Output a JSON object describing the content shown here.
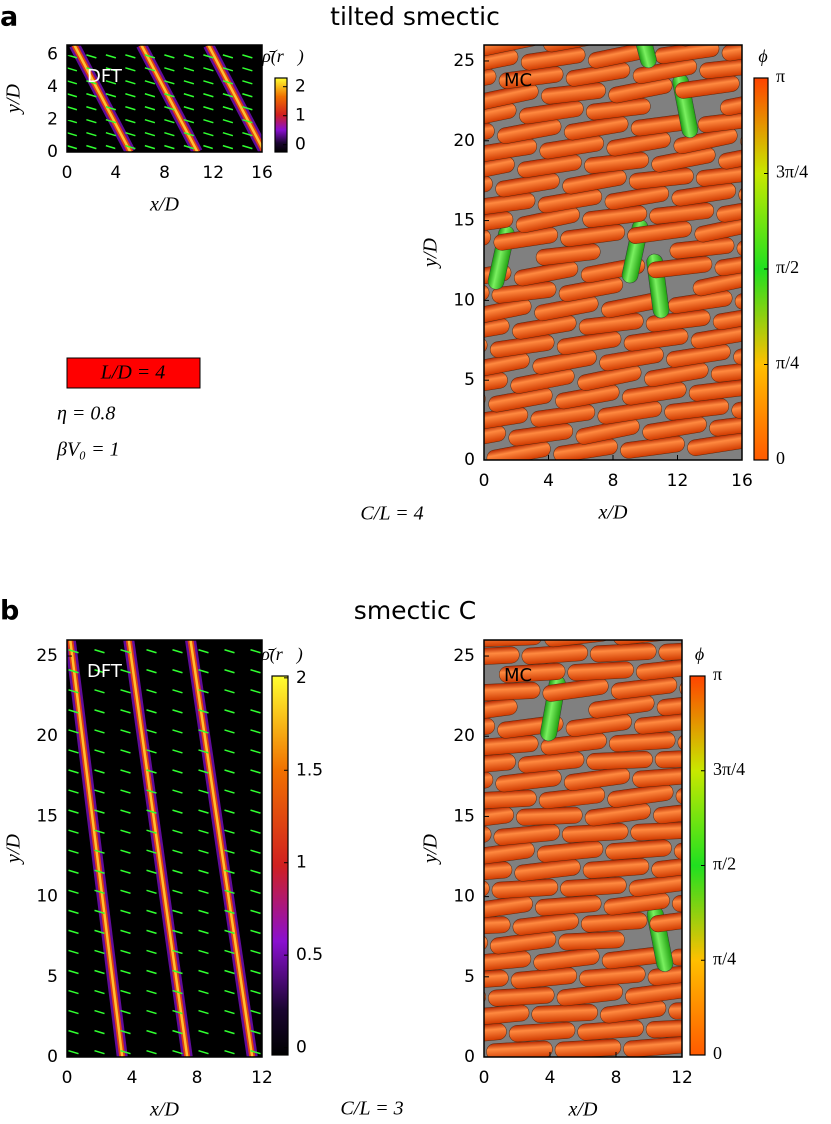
{
  "figure": {
    "panels": [
      {
        "label": "a",
        "title": "tilted smectic",
        "note": "C/L = 4"
      },
      {
        "label": "b",
        "title": "smectic C",
        "note": "C/L = 3"
      }
    ],
    "legend": {
      "box": "L/D = 4",
      "lines": [
        "η = 0.8",
        "βV₀ = 1"
      ]
    }
  },
  "chart_data": [
    {
      "type": "heatmap",
      "annotation": "DFT",
      "xlabel": "x/D",
      "ylabel": "y/D",
      "xlim": [
        0,
        16
      ],
      "ylim": [
        0,
        6.6
      ],
      "xticks": [
        0,
        4,
        8,
        12,
        16
      ],
      "yticks": [
        0,
        2,
        4,
        6
      ],
      "colorbar": {
        "label": "ρ̄(r⃗)",
        "lim": [
          -0.25,
          2.3
        ],
        "ticks": [
          0,
          1,
          2
        ]
      }
    },
    {
      "type": "image",
      "annotation": "MC",
      "xlabel": "x/D",
      "ylabel": "y/D",
      "xlim": [
        0,
        16
      ],
      "ylim": [
        0,
        26
      ],
      "xticks": [
        0,
        4,
        8,
        12,
        16
      ],
      "yticks": [
        0,
        5,
        10,
        15,
        20,
        25
      ],
      "colorbar": {
        "label": "ϕ",
        "lim": [
          0,
          3.1416
        ],
        "ticks": [
          0,
          {
            "value": 0.7854,
            "label": "π/4"
          },
          {
            "value": 1.5708,
            "label": "π/2"
          },
          {
            "value": 2.3562,
            "label": "3π/4"
          },
          {
            "value": 3.1416,
            "label": "π"
          }
        ]
      }
    },
    {
      "type": "heatmap",
      "annotation": "DFT",
      "xlabel": "x/D",
      "ylabel": "y/D",
      "xlim": [
        0,
        12
      ],
      "ylim": [
        0,
        26
      ],
      "xticks": [
        0,
        4,
        8,
        12
      ],
      "yticks": [
        0,
        5,
        10,
        15,
        20,
        25
      ],
      "colorbar": {
        "label": "ρ̄(r⃗)",
        "lim": [
          -0.04,
          2.01
        ],
        "ticks": [
          0,
          0.5,
          1,
          1.5,
          2
        ]
      }
    },
    {
      "type": "image",
      "annotation": "MC",
      "xlabel": "x/D",
      "ylabel": "y/D",
      "xlim": [
        0,
        12
      ],
      "ylim": [
        0,
        26
      ],
      "xticks": [
        0,
        4,
        8,
        12
      ],
      "yticks": [
        0,
        5,
        10,
        15,
        20,
        25
      ],
      "colorbar": {
        "label": "ϕ",
        "lim": [
          0,
          3.1416
        ],
        "ticks": [
          0,
          {
            "value": 0.7854,
            "label": "π/4"
          },
          {
            "value": 1.5708,
            "label": "π/2"
          },
          {
            "value": 2.3562,
            "label": "3π/4"
          },
          {
            "value": 3.1416,
            "label": "π"
          }
        ]
      }
    }
  ]
}
